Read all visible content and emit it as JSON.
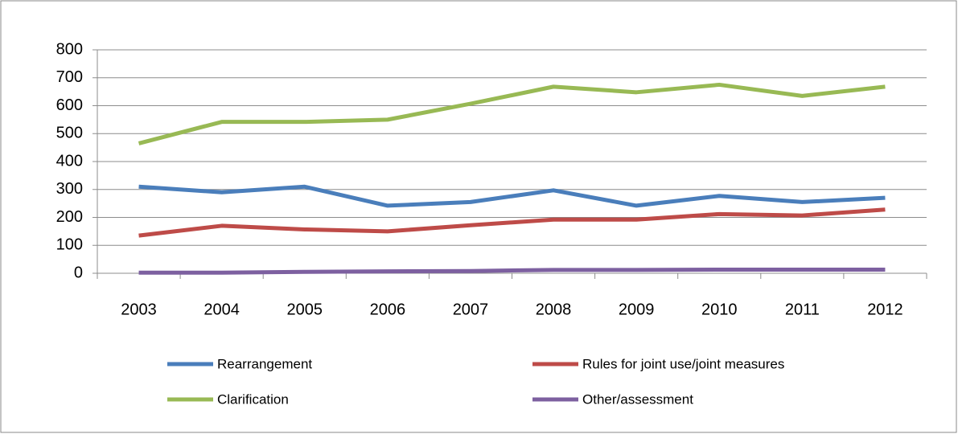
{
  "chart_data": {
    "type": "line",
    "categories": [
      "2003",
      "2004",
      "2005",
      "2006",
      "2007",
      "2008",
      "2009",
      "2010",
      "2011",
      "2012"
    ],
    "series": [
      {
        "name": "Rearrangement",
        "color": "#4a7ebb",
        "values": [
          310,
          290,
          310,
          242,
          255,
          297,
          242,
          277,
          255,
          270
        ]
      },
      {
        "name": "Rules for joint use/joint measures",
        "color": "#be4b48",
        "values": [
          135,
          170,
          157,
          150,
          172,
          192,
          192,
          212,
          207,
          228
        ]
      },
      {
        "name": "Clarification",
        "color": "#98b954",
        "values": [
          465,
          542,
          542,
          550,
          607,
          668,
          648,
          675,
          635,
          668
        ]
      },
      {
        "name": "Other/assessment",
        "color": "#7d60a0",
        "values": [
          2,
          2,
          5,
          7,
          8,
          12,
          12,
          13,
          13,
          13
        ]
      }
    ],
    "ylim": [
      0,
      800
    ],
    "yticks": [
      0,
      100,
      200,
      300,
      400,
      500,
      600,
      700,
      800
    ],
    "grid": true,
    "legend": "bottom"
  }
}
